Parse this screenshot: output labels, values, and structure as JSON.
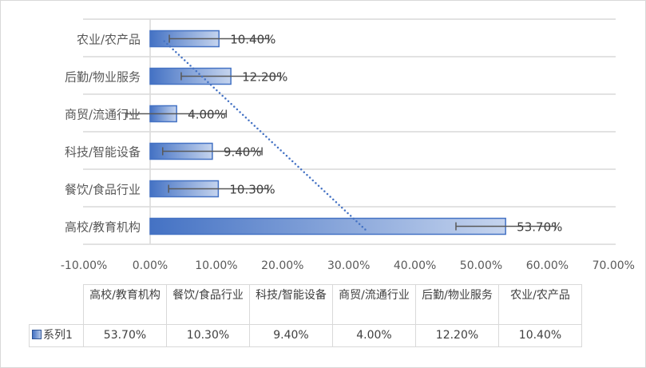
{
  "chart_data": {
    "type": "bar",
    "orientation": "horizontal",
    "categories": [
      "高校/教育机构",
      "餐饮/食品行业",
      "科技/智能设备",
      "商贸/流通行业",
      "后勤/物业服务",
      "农业/农产品"
    ],
    "series": [
      {
        "name": "系列1",
        "values": [
          53.7,
          10.3,
          9.4,
          4.0,
          12.2,
          10.4
        ],
        "labels": [
          "53.70%",
          "10.30%",
          "9.40%",
          "4.00%",
          "12.20%",
          "10.40%"
        ]
      }
    ],
    "error_bar_amount": 7.5,
    "trendline": {
      "type": "linear",
      "style": "dotted",
      "start_value": 32.5,
      "end_value": 2.0
    },
    "xlim": [
      -10,
      70
    ],
    "xticks": [
      -10,
      0,
      10,
      20,
      30,
      40,
      50,
      60,
      70
    ],
    "xtick_labels": [
      "-10.00%",
      "0.00%",
      "10.00%",
      "20.00%",
      "30.00%",
      "40.00%",
      "50.00%",
      "60.00%",
      "70.00%"
    ],
    "grid": "horizontal category bands",
    "data_table": true,
    "colors": {
      "bar_start": "#4472c4",
      "bar_end": "#c5d4ee",
      "bar_border": "#4472c4",
      "error": "#595959",
      "trend": "#4472c4",
      "grid": "#d9d9d9"
    }
  }
}
